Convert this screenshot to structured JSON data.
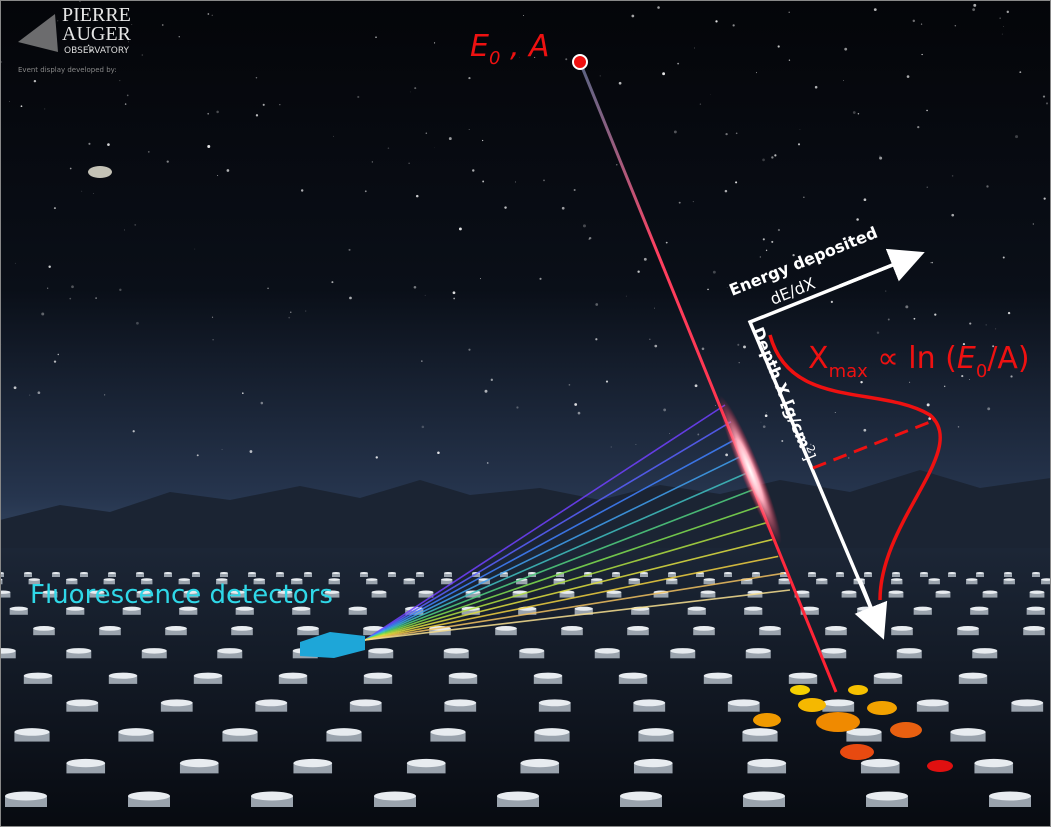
{
  "logo": {
    "line1": "PIERRE",
    "line2": "AUGER",
    "line3": "OBSERVATORY",
    "credit": "Event display developed by:"
  },
  "primary": {
    "symbol": "E",
    "sub": "0",
    "rest": " , A"
  },
  "energy_axis": {
    "title": "Energy deposited",
    "subtitle": "dE/dX"
  },
  "xmax": {
    "symbol": "X",
    "sub": "max",
    "relation": " ∝ ln (",
    "e": "E",
    "esub": "0",
    "rest": "/A)"
  },
  "depth_axis": {
    "text": "Depth X [g/cm",
    "sup": "2",
    "close": "]"
  },
  "detector_label": "Fluorescence detectors"
}
